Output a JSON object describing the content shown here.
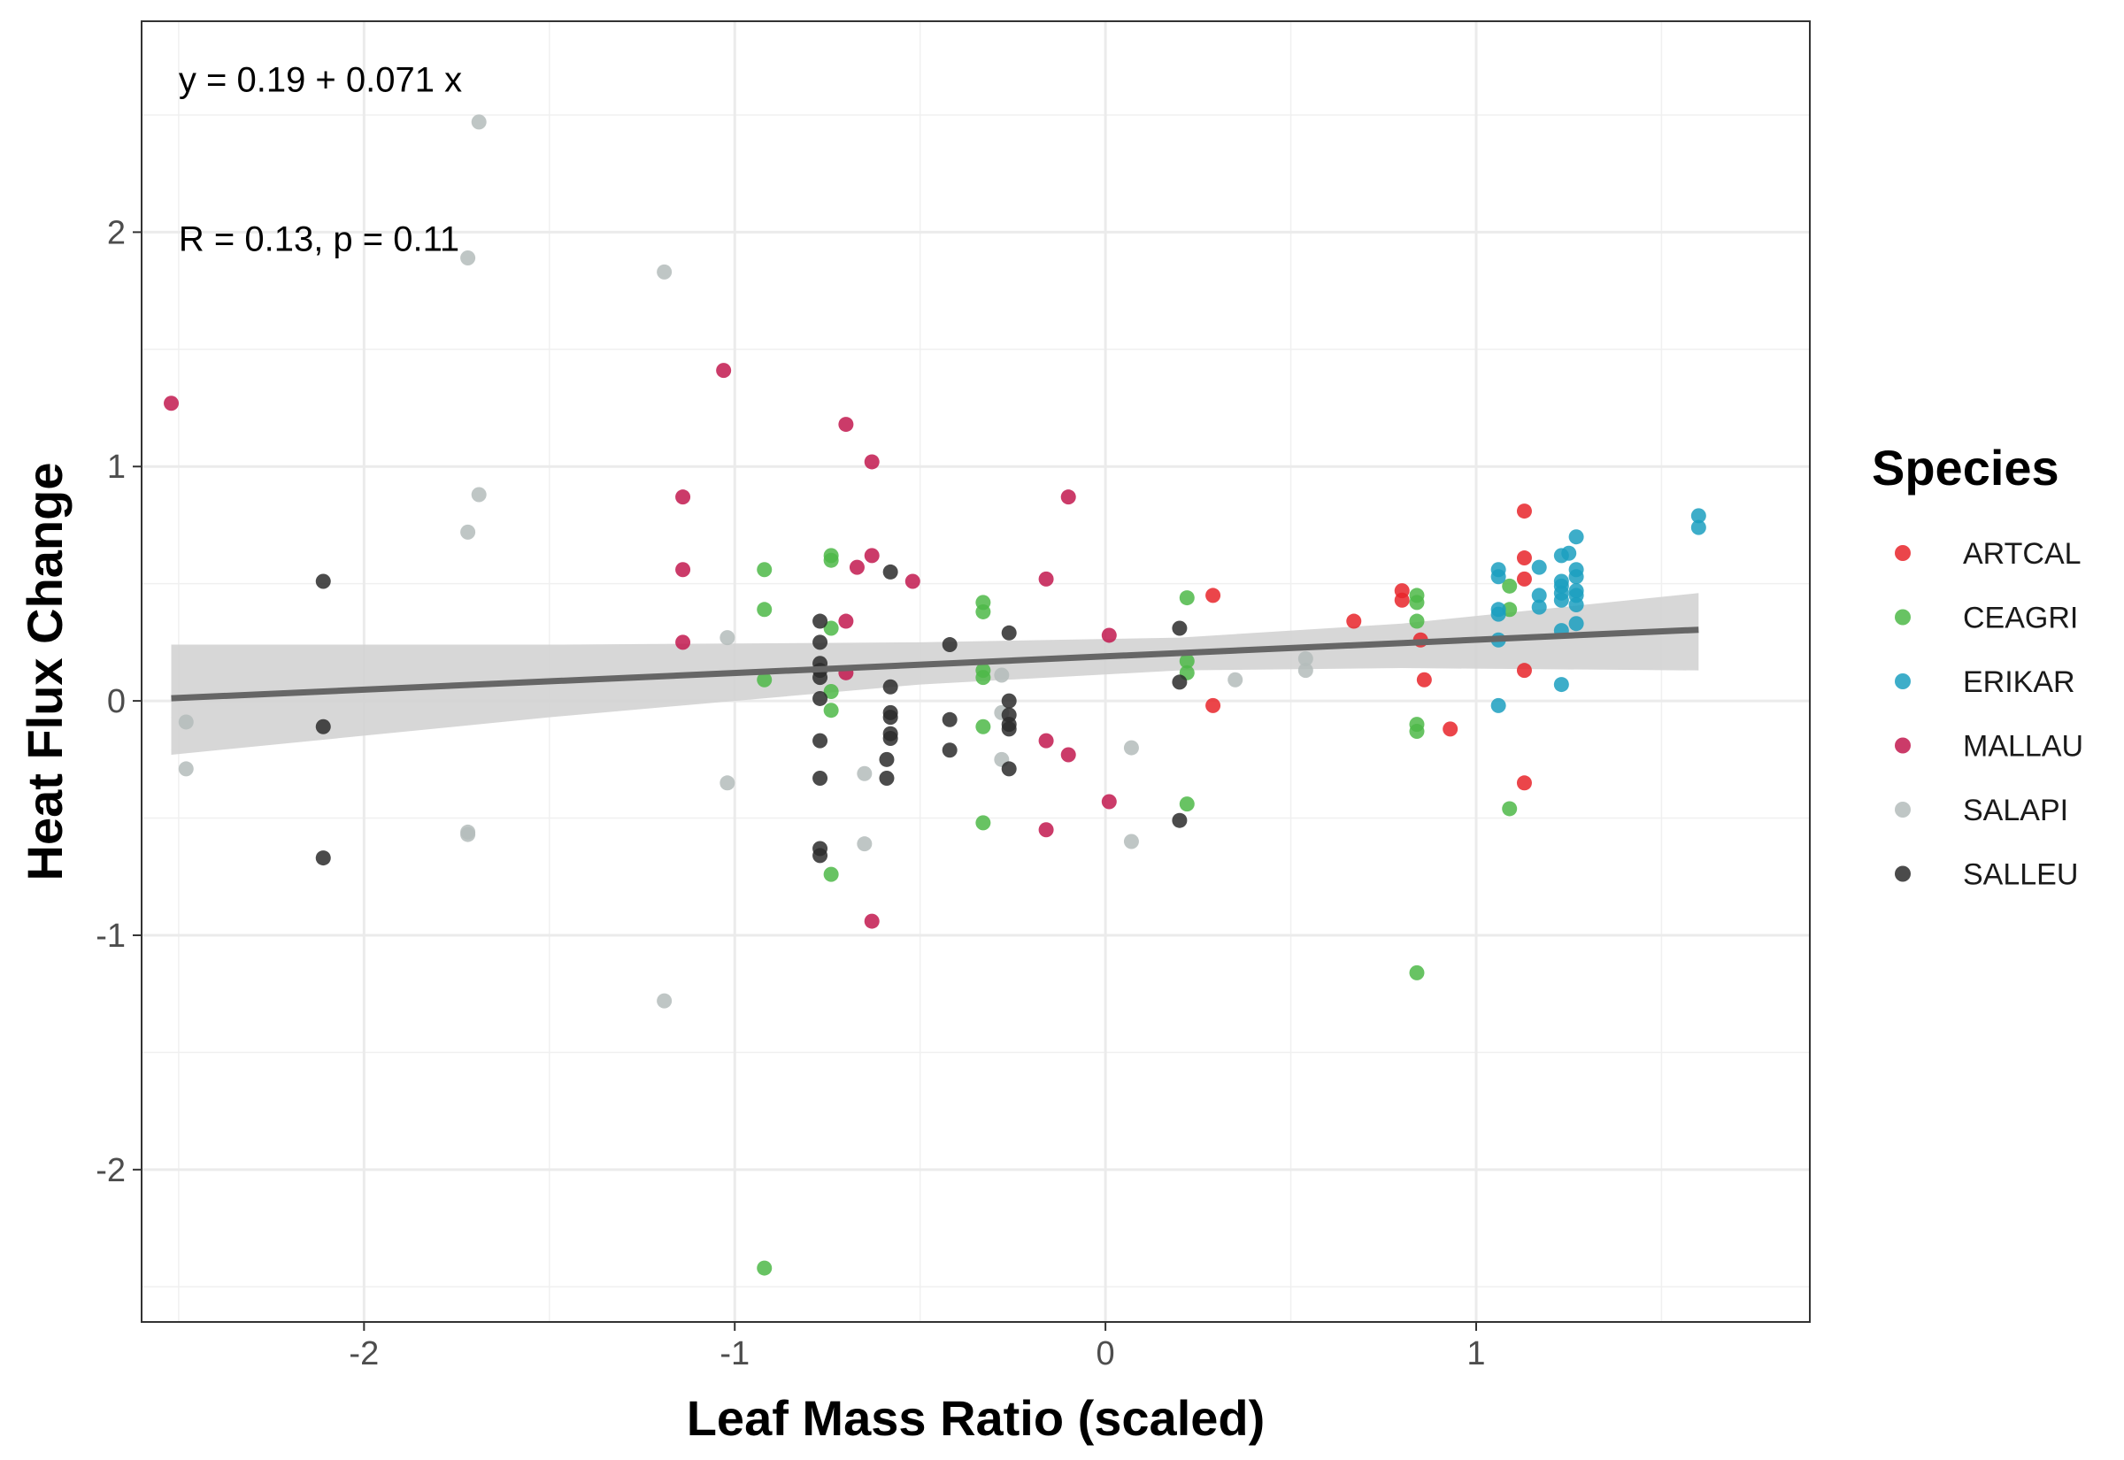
{
  "chart_data": {
    "type": "scatter",
    "xlabel": "Leaf Mass Ratio (scaled)",
    "ylabel": "Heat Flux Change",
    "xlim": [
      -2.6,
      1.9
    ],
    "ylim": [
      -2.65,
      2.9
    ],
    "x_ticks": [
      -2,
      -1,
      0,
      1
    ],
    "x_tick_labels": [
      "-2",
      "-1",
      "0",
      "1"
    ],
    "y_ticks": [
      -2,
      -1,
      0,
      1,
      2
    ],
    "y_tick_labels": [
      "-2",
      "-1",
      "0",
      "1",
      "2"
    ],
    "grid": true,
    "legend": {
      "title": "Species",
      "position": "right"
    },
    "annotations": [
      {
        "text": "y = 0.19 + 0.071 x",
        "x": -2.5,
        "y": 2.6
      },
      {
        "text": "R = 0.13, p = 0.11",
        "x": -2.5,
        "y": 1.92
      }
    ],
    "regression": {
      "intercept": 0.19,
      "slope": 0.071,
      "x_range": [
        -2.52,
        1.6
      ],
      "ci_lower": [
        0.0,
        0.0
      ],
      "line_color": "#666666",
      "band_color": "#d3d3d3",
      "band": [
        {
          "x": -2.52,
          "lo": -0.23,
          "hi": 0.24
        },
        {
          "x": -1.5,
          "lo": -0.07,
          "hi": 0.24
        },
        {
          "x": -0.5,
          "lo": 0.07,
          "hi": 0.25
        },
        {
          "x": 0.2,
          "lo": 0.13,
          "hi": 0.27
        },
        {
          "x": 0.8,
          "lo": 0.14,
          "hi": 0.33
        },
        {
          "x": 1.6,
          "lo": 0.13,
          "hi": 0.46
        }
      ]
    },
    "series": [
      {
        "name": "ARTCAL",
        "color": "#e8252a",
        "points": [
          [
            1.13,
            0.81
          ],
          [
            1.13,
            0.61
          ],
          [
            1.13,
            0.52
          ],
          [
            0.8,
            0.47
          ],
          [
            0.8,
            0.43
          ],
          [
            0.85,
            0.26
          ],
          [
            0.67,
            0.34
          ],
          [
            0.29,
            0.45
          ],
          [
            0.86,
            0.09
          ],
          [
            1.13,
            0.13
          ],
          [
            0.93,
            -0.12
          ],
          [
            0.29,
            -0.02
          ],
          [
            1.13,
            -0.35
          ]
        ]
      },
      {
        "name": "CEAGRI",
        "color": "#4db848",
        "points": [
          [
            -0.92,
            0.56
          ],
          [
            -0.92,
            0.39
          ],
          [
            -0.74,
            0.62
          ],
          [
            -0.74,
            0.6
          ],
          [
            -0.33,
            0.42
          ],
          [
            -0.33,
            0.38
          ],
          [
            -0.74,
            0.31
          ],
          [
            -0.92,
            0.09
          ],
          [
            -0.74,
            0.04
          ],
          [
            -0.74,
            -0.04
          ],
          [
            -0.33,
            0.13
          ],
          [
            -0.33,
            0.1
          ],
          [
            -0.33,
            -0.11
          ],
          [
            -0.33,
            -0.52
          ],
          [
            -0.74,
            -0.74
          ],
          [
            -0.92,
            -2.42
          ],
          [
            0.22,
            0.44
          ],
          [
            0.22,
            0.17
          ],
          [
            0.22,
            0.12
          ],
          [
            0.22,
            -0.44
          ],
          [
            0.84,
            0.45
          ],
          [
            0.84,
            0.42
          ],
          [
            0.84,
            0.34
          ],
          [
            0.84,
            -0.1
          ],
          [
            0.84,
            -0.13
          ],
          [
            0.84,
            -1.16
          ],
          [
            1.09,
            0.49
          ],
          [
            1.09,
            0.39
          ],
          [
            1.09,
            -0.46
          ]
        ]
      },
      {
        "name": "ERIKAR",
        "color": "#1b9fc0",
        "points": [
          [
            1.6,
            0.79
          ],
          [
            1.6,
            0.74
          ],
          [
            1.27,
            0.7
          ],
          [
            1.27,
            0.56
          ],
          [
            1.27,
            0.53
          ],
          [
            1.27,
            0.47
          ],
          [
            1.27,
            0.45
          ],
          [
            1.27,
            0.41
          ],
          [
            1.27,
            0.33
          ],
          [
            1.25,
            0.63
          ],
          [
            1.23,
            0.62
          ],
          [
            1.23,
            0.51
          ],
          [
            1.23,
            0.49
          ],
          [
            1.23,
            0.46
          ],
          [
            1.23,
            0.43
          ],
          [
            1.23,
            0.3
          ],
          [
            1.23,
            0.07
          ],
          [
            1.17,
            0.57
          ],
          [
            1.17,
            0.45
          ],
          [
            1.17,
            0.4
          ],
          [
            1.06,
            0.56
          ],
          [
            1.06,
            0.53
          ],
          [
            1.06,
            0.39
          ],
          [
            1.06,
            0.37
          ],
          [
            1.06,
            0.26
          ],
          [
            1.06,
            -0.02
          ]
        ]
      },
      {
        "name": "MALLAU",
        "color": "#c2194f",
        "points": [
          [
            -2.52,
            1.27
          ],
          [
            -1.03,
            1.41
          ],
          [
            -0.7,
            1.18
          ],
          [
            -0.63,
            1.02
          ],
          [
            -1.14,
            0.87
          ],
          [
            -0.1,
            0.87
          ],
          [
            -1.14,
            0.56
          ],
          [
            -0.63,
            0.62
          ],
          [
            -0.67,
            0.57
          ],
          [
            -0.52,
            0.51
          ],
          [
            -0.16,
            0.52
          ],
          [
            -0.7,
            0.34
          ],
          [
            0.01,
            0.28
          ],
          [
            -1.14,
            0.25
          ],
          [
            -0.7,
            0.12
          ],
          [
            -0.16,
            -0.17
          ],
          [
            -0.1,
            -0.23
          ],
          [
            0.01,
            -0.43
          ],
          [
            -0.16,
            -0.55
          ],
          [
            -0.63,
            -0.94
          ]
        ]
      },
      {
        "name": "SALAPI",
        "color": "#b4bcbb",
        "points": [
          [
            -1.69,
            2.47
          ],
          [
            -1.72,
            1.89
          ],
          [
            -1.19,
            1.83
          ],
          [
            -1.69,
            0.88
          ],
          [
            -1.72,
            0.72
          ],
          [
            -1.02,
            0.27
          ],
          [
            -2.48,
            -0.09
          ],
          [
            -2.48,
            -0.29
          ],
          [
            -1.02,
            -0.35
          ],
          [
            -1.72,
            -0.56
          ],
          [
            -1.72,
            -0.57
          ],
          [
            -1.19,
            -1.28
          ],
          [
            -0.65,
            -0.31
          ],
          [
            -0.65,
            -0.61
          ],
          [
            -0.28,
            0.11
          ],
          [
            -0.28,
            -0.05
          ],
          [
            -0.28,
            -0.25
          ],
          [
            0.07,
            -0.2
          ],
          [
            0.07,
            -0.6
          ],
          [
            0.35,
            0.09
          ],
          [
            0.54,
            0.18
          ],
          [
            0.54,
            0.13
          ]
        ]
      },
      {
        "name": "SALLEU",
        "color": "#2b2b2b",
        "points": [
          [
            -2.11,
            0.51
          ],
          [
            -2.11,
            -0.11
          ],
          [
            -2.11,
            -0.67
          ],
          [
            -0.77,
            0.34
          ],
          [
            -0.77,
            0.25
          ],
          [
            -0.77,
            0.16
          ],
          [
            -0.77,
            0.13
          ],
          [
            -0.77,
            0.1
          ],
          [
            -0.77,
            0.01
          ],
          [
            -0.77,
            -0.17
          ],
          [
            -0.77,
            -0.33
          ],
          [
            -0.77,
            -0.63
          ],
          [
            -0.77,
            -0.66
          ],
          [
            -0.58,
            0.55
          ],
          [
            -0.58,
            0.06
          ],
          [
            -0.58,
            -0.05
          ],
          [
            -0.58,
            -0.07
          ],
          [
            -0.58,
            -0.14
          ],
          [
            -0.58,
            -0.16
          ],
          [
            -0.59,
            -0.25
          ],
          [
            -0.59,
            -0.33
          ],
          [
            -0.42,
            0.24
          ],
          [
            -0.42,
            -0.08
          ],
          [
            -0.42,
            -0.21
          ],
          [
            -0.26,
            0.29
          ],
          [
            -0.26,
            0.0
          ],
          [
            -0.26,
            -0.06
          ],
          [
            -0.26,
            -0.1
          ],
          [
            -0.26,
            -0.12
          ],
          [
            -0.26,
            -0.29
          ],
          [
            0.2,
            0.31
          ],
          [
            0.2,
            0.08
          ],
          [
            0.2,
            -0.51
          ]
        ]
      }
    ]
  }
}
